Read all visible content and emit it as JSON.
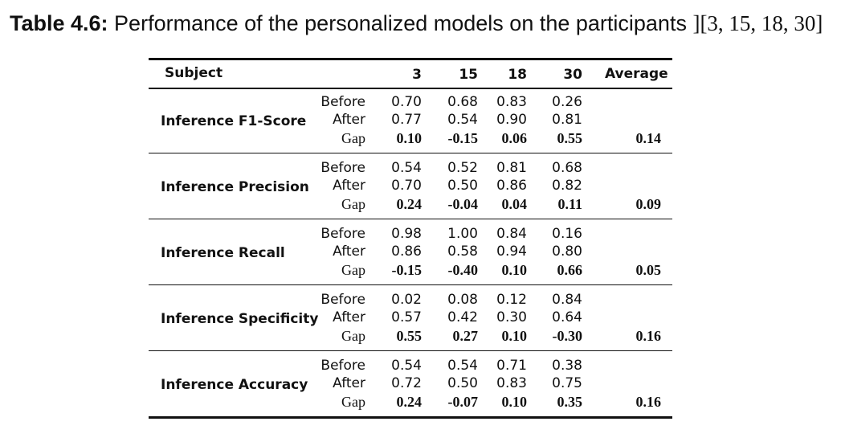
{
  "caption": {
    "label": "Table 4.6:",
    "text": " Performance of the personalized models on the participants ",
    "refs": "][3, 15, 18, 30]"
  },
  "header": {
    "subject": "Subject",
    "cols": [
      "3",
      "15",
      "18",
      "30"
    ],
    "average": "Average"
  },
  "groups": [
    {
      "metric": "Inference F1-Score",
      "rows": [
        {
          "label": "Before",
          "values": [
            "0.70",
            "0.68",
            "0.83",
            "0.26"
          ]
        },
        {
          "label": "After",
          "values": [
            "0.77",
            "0.54",
            "0.90",
            "0.81"
          ]
        },
        {
          "label": "Gap",
          "values": [
            "0.10",
            "-0.15",
            "0.06",
            "0.55"
          ]
        }
      ],
      "average": "0.14"
    },
    {
      "metric": "Inference Precision",
      "rows": [
        {
          "label": "Before",
          "values": [
            "0.54",
            "0.52",
            "0.81",
            "0.68"
          ]
        },
        {
          "label": "After",
          "values": [
            "0.70",
            "0.50",
            "0.86",
            "0.82"
          ]
        },
        {
          "label": "Gap",
          "values": [
            "0.24",
            "-0.04",
            "0.04",
            "0.11"
          ]
        }
      ],
      "average": "0.09"
    },
    {
      "metric": "Inference Recall",
      "rows": [
        {
          "label": "Before",
          "values": [
            "0.98",
            "1.00",
            "0.84",
            "0.16"
          ]
        },
        {
          "label": "After",
          "values": [
            "0.86",
            "0.58",
            "0.94",
            "0.80"
          ]
        },
        {
          "label": "Gap",
          "values": [
            "-0.15",
            "-0.40",
            "0.10",
            "0.66"
          ]
        }
      ],
      "average": "0.05"
    },
    {
      "metric": "Inference Specificity",
      "rows": [
        {
          "label": "Before",
          "values": [
            "0.02",
            "0.08",
            "0.12",
            "0.84"
          ]
        },
        {
          "label": "After",
          "values": [
            "0.57",
            "0.42",
            "0.30",
            "0.64"
          ]
        },
        {
          "label": "Gap",
          "values": [
            "0.55",
            "0.27",
            "0.10",
            "-0.30"
          ]
        }
      ],
      "average": "0.16"
    },
    {
      "metric": "Inference Accuracy",
      "rows": [
        {
          "label": "Before",
          "values": [
            "0.54",
            "0.54",
            "0.71",
            "0.38"
          ]
        },
        {
          "label": "After",
          "values": [
            "0.72",
            "0.50",
            "0.83",
            "0.75"
          ]
        },
        {
          "label": "Gap",
          "values": [
            "0.24",
            "-0.07",
            "0.10",
            "0.35"
          ]
        }
      ],
      "average": "0.16"
    }
  ]
}
